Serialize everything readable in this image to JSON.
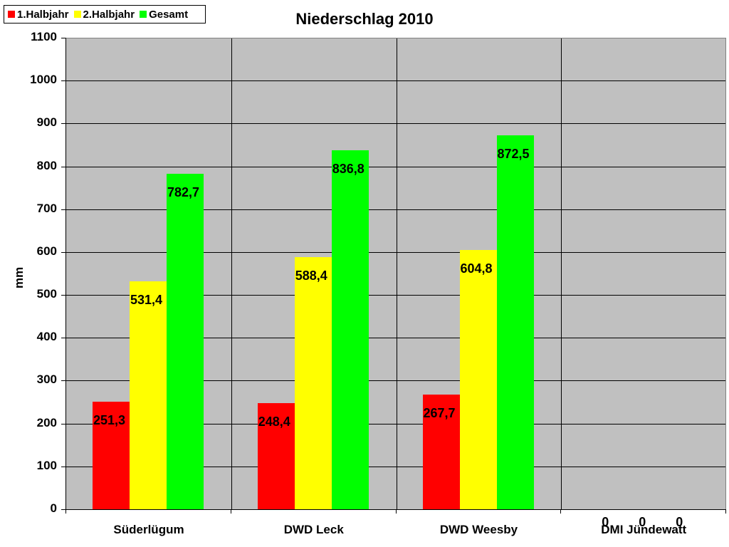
{
  "chart_data": {
    "type": "bar",
    "title": "Niederschlag 2010",
    "xlabel": "",
    "ylabel": "mm",
    "ylim": [
      0,
      1100
    ],
    "yticks": [
      0,
      100,
      200,
      300,
      400,
      500,
      600,
      700,
      800,
      900,
      1000,
      1100
    ],
    "grid": true,
    "legend_position": "top-left",
    "categories": [
      "Süderlügum",
      "DWD Leck",
      "DWD Weesby",
      "DMI Jündewatt"
    ],
    "series": [
      {
        "name": "1.Halbjahr",
        "color": "#ff0000",
        "values": [
          251.3,
          248.4,
          267.7,
          0
        ],
        "labels": [
          "251,3",
          "248,4",
          "267,7",
          "0"
        ]
      },
      {
        "name": "2.Halbjahr",
        "color": "#ffff00",
        "values": [
          531.4,
          588.4,
          604.8,
          0
        ],
        "labels": [
          "531,4",
          "588,4",
          "604,8",
          "0"
        ]
      },
      {
        "name": "Gesamt",
        "color": "#00ff00",
        "values": [
          782.7,
          836.8,
          872.5,
          0
        ],
        "labels": [
          "782,7",
          "836,8",
          "872,5",
          "0"
        ]
      }
    ]
  },
  "plot_background": "#c0c0c0"
}
